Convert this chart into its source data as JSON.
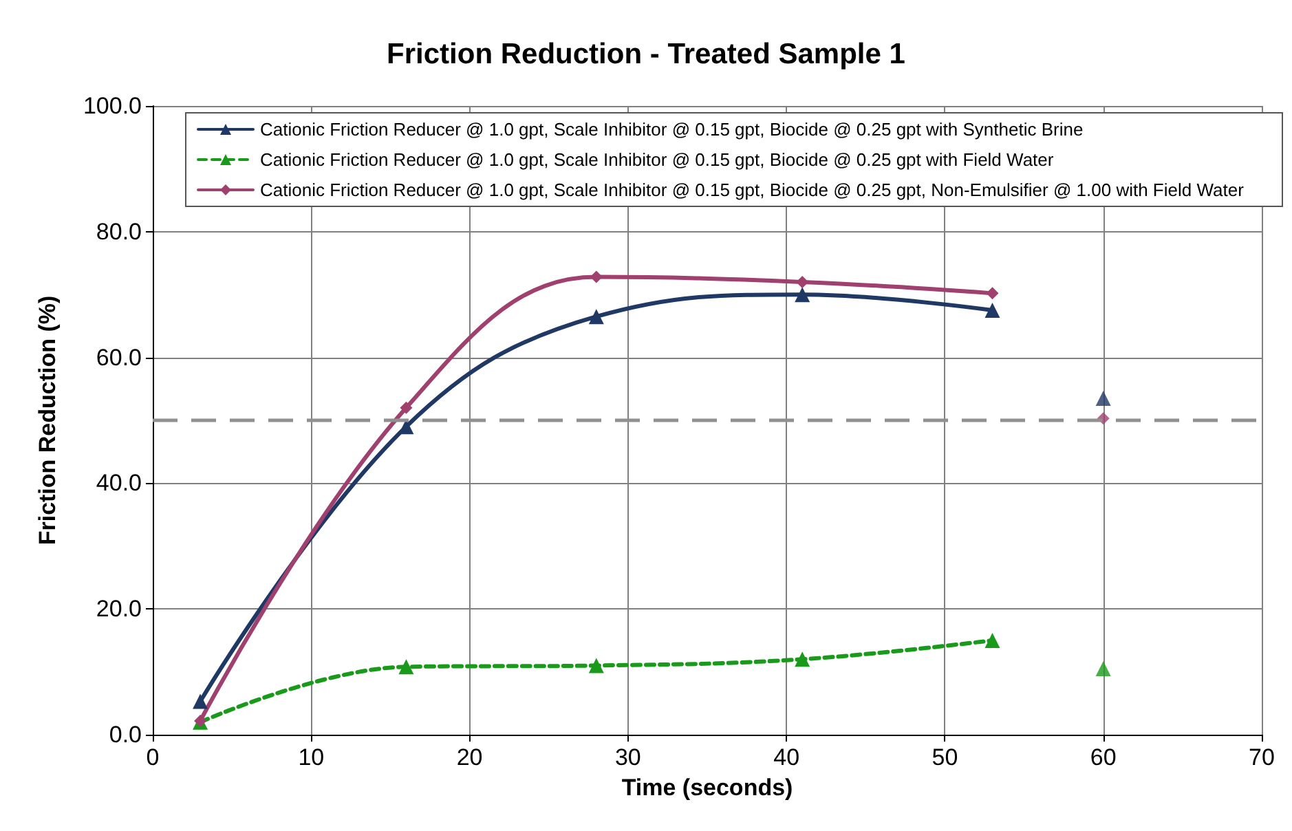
{
  "chart_data": {
    "type": "line",
    "title": "Friction Reduction - Treated Sample 1",
    "xlabel": "Time (seconds)",
    "ylabel": "Friction Reduction (%)",
    "xlim": [
      0,
      70
    ],
    "xticks": [
      0,
      10,
      20,
      30,
      40,
      50,
      60,
      70
    ],
    "ylim": [
      0,
      100
    ],
    "yticks": [
      {
        "value": 0,
        "label": "0.0"
      },
      {
        "value": 20,
        "label": "20.0"
      },
      {
        "value": 40,
        "label": "40.0"
      },
      {
        "value": 60,
        "label": "60.0"
      },
      {
        "value": 80,
        "label": "80.0"
      },
      {
        "value": 100,
        "label": "100.0"
      }
    ],
    "grid": true,
    "legend": "top",
    "series": [
      {
        "name": "Cationic Friction Reducer @ 1.0 gpt, Scale Inhibitor @ 0.15 gpt, Biocide @ 0.25 gpt with Synthetic Brine",
        "color": "#1f3864",
        "marker": "triangle",
        "line_style": "solid",
        "x": [
          3,
          16,
          28,
          41,
          53
        ],
        "values": [
          5.3,
          49,
          66.5,
          70,
          67.5
        ]
      },
      {
        "name": "Cationic Friction Reducer @ 1.0 gpt, Scale Inhibitor @ 0.15 gpt, Biocide @ 0.25 gpt with Field Water",
        "color": "#1a9a1a",
        "marker": "triangle",
        "line_style": "dashed",
        "x": [
          3,
          16,
          28,
          41,
          53
        ],
        "values": [
          2,
          10.8,
          11,
          12,
          15
        ]
      },
      {
        "name": "Cationic Friction Reducer @ 1.0 gpt, Scale Inhibitor @ 0.15 gpt, Biocide @ 0.25 gpt, Non-Emulsifier @ 1.00 with Field Water",
        "color": "#a0406e",
        "marker": "diamond",
        "line_style": "solid",
        "x": [
          3,
          16,
          28,
          41,
          53
        ],
        "values": [
          2.2,
          52,
          72.8,
          72,
          70.2
        ]
      },
      {
        "type": "scatter",
        "color": "#1f3864",
        "marker": "triangle",
        "x": [
          60
        ],
        "values": [
          53.5
        ]
      },
      {
        "type": "scatter",
        "color": "#1a9a1a",
        "marker": "triangle",
        "x": [
          60
        ],
        "values": [
          10.5
        ]
      },
      {
        "type": "scatter",
        "color": "#a0406e",
        "marker": "diamond",
        "x": [
          60
        ],
        "values": [
          50.3
        ]
      }
    ],
    "ref_lines": [
      {
        "axis": "y",
        "value": 50,
        "color": "#909090",
        "line_style": "dashed"
      }
    ]
  }
}
